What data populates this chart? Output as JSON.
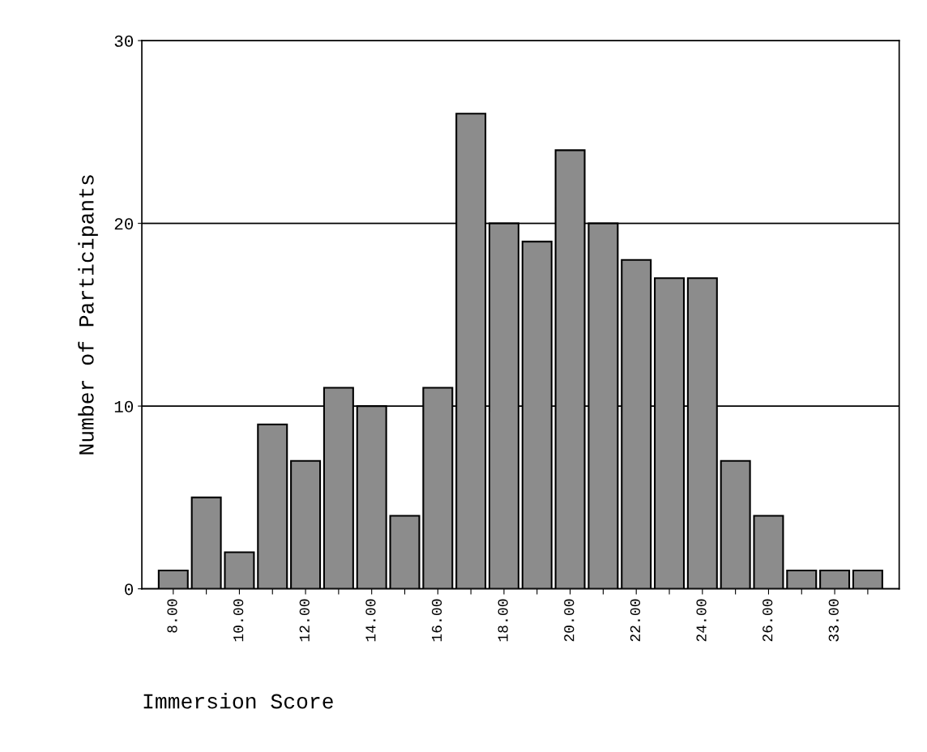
{
  "chart_data": {
    "type": "bar",
    "xlabel": "Immersion Score",
    "ylabel": "Number of Participants",
    "categories": [
      "8.00",
      null,
      "10.00",
      null,
      "12.00",
      null,
      "14.00",
      null,
      "16.00",
      null,
      "18.00",
      null,
      "20.00",
      null,
      "22.00",
      null,
      "24.00",
      null,
      "26.00",
      null,
      "33.00",
      null
    ],
    "values": [
      1,
      5,
      2,
      9,
      7,
      11,
      10,
      4,
      11,
      26,
      20,
      19,
      24,
      20,
      18,
      17,
      17,
      7,
      4,
      1,
      1,
      1
    ],
    "color": "#8c8c8c",
    "ylim": [
      0,
      30
    ],
    "yticks": [
      0,
      10,
      20,
      30
    ],
    "grid": "y"
  }
}
